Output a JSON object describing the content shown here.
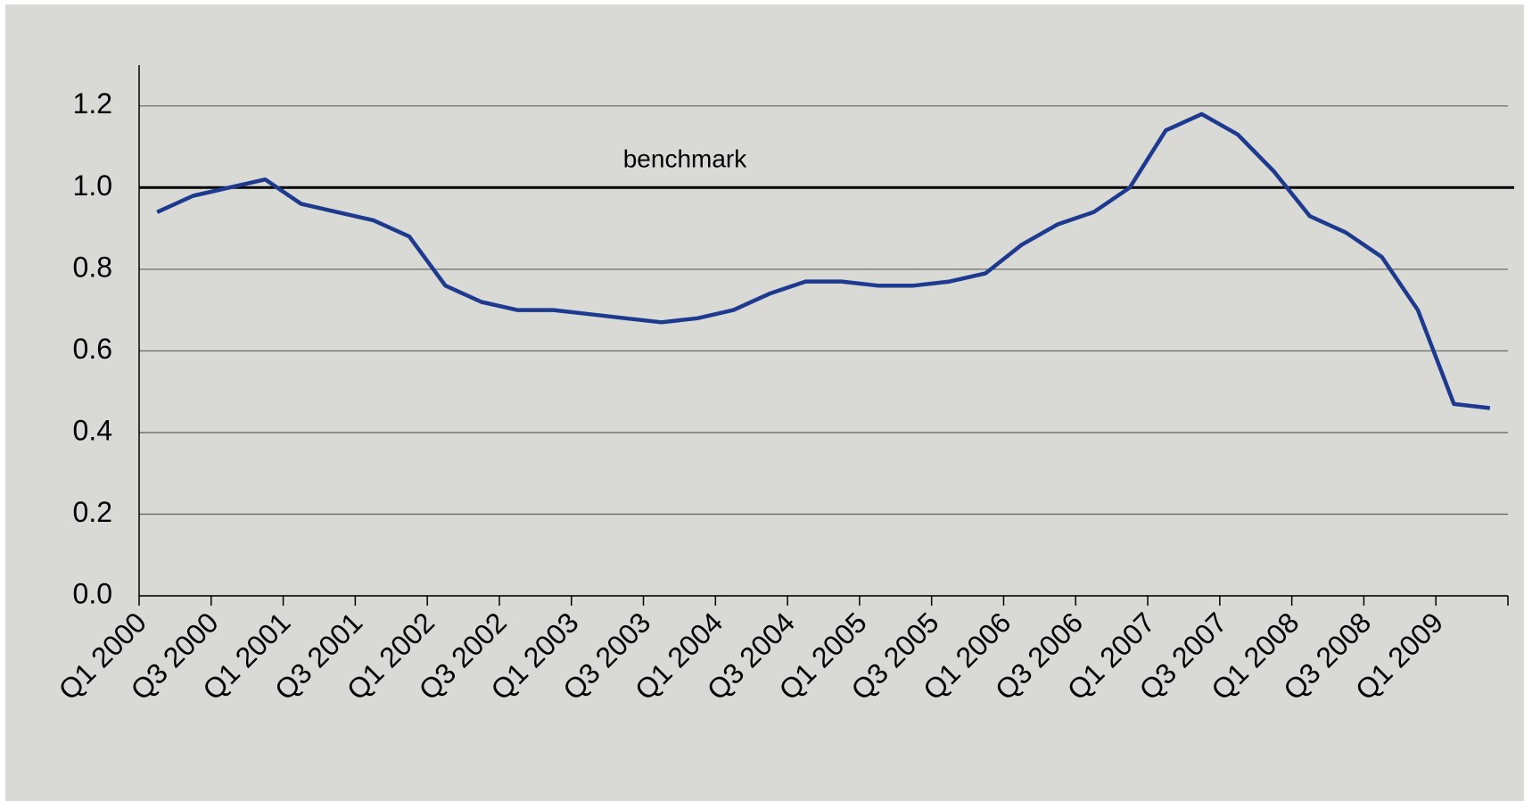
{
  "chart_data": {
    "type": "line",
    "categories": [
      "Q1 2000",
      null,
      "Q3 2000",
      null,
      "Q1 2001",
      null,
      "Q3 2001",
      null,
      "Q1 2002",
      null,
      "Q3 2002",
      null,
      "Q1 2003",
      null,
      "Q3 2003",
      null,
      "Q1 2004",
      null,
      "Q3 2004",
      null,
      "Q1 2005",
      null,
      "Q3 2005",
      null,
      "Q1 2006",
      null,
      "Q3 2006",
      null,
      "Q1 2007",
      null,
      "Q3 2007",
      null,
      "Q1 2008",
      null,
      "Q3 2008",
      null,
      "Q1 2009",
      null
    ],
    "series": [
      {
        "color": "#1d3a8f",
        "values": [
          0.94,
          0.98,
          1.0,
          1.02,
          0.96,
          0.94,
          0.92,
          0.88,
          0.76,
          0.72,
          0.7,
          0.7,
          0.69,
          0.68,
          0.67,
          0.68,
          0.7,
          0.74,
          0.77,
          0.77,
          0.76,
          0.76,
          0.77,
          0.79,
          0.86,
          0.91,
          0.94,
          1.0,
          1.14,
          1.18,
          1.13,
          1.04,
          0.93,
          0.89,
          0.83,
          0.7,
          0.47,
          0.46
        ]
      }
    ],
    "reference_line": {
      "value": 1.0,
      "label": "benchmark",
      "color": "#000000"
    },
    "ylim": [
      0,
      1.3
    ],
    "yticks": [
      {
        "value": 0,
        "label": "0.0"
      },
      {
        "value": 0.2,
        "label": "0.2"
      },
      {
        "value": 0.4,
        "label": "0.4"
      },
      {
        "value": 0.6,
        "label": "0.6"
      },
      {
        "value": 0.8,
        "label": "0.8"
      },
      {
        "value": 1,
        "label": "1.0"
      },
      {
        "value": 1.2,
        "label": "1.2"
      }
    ],
    "grid": true
  }
}
